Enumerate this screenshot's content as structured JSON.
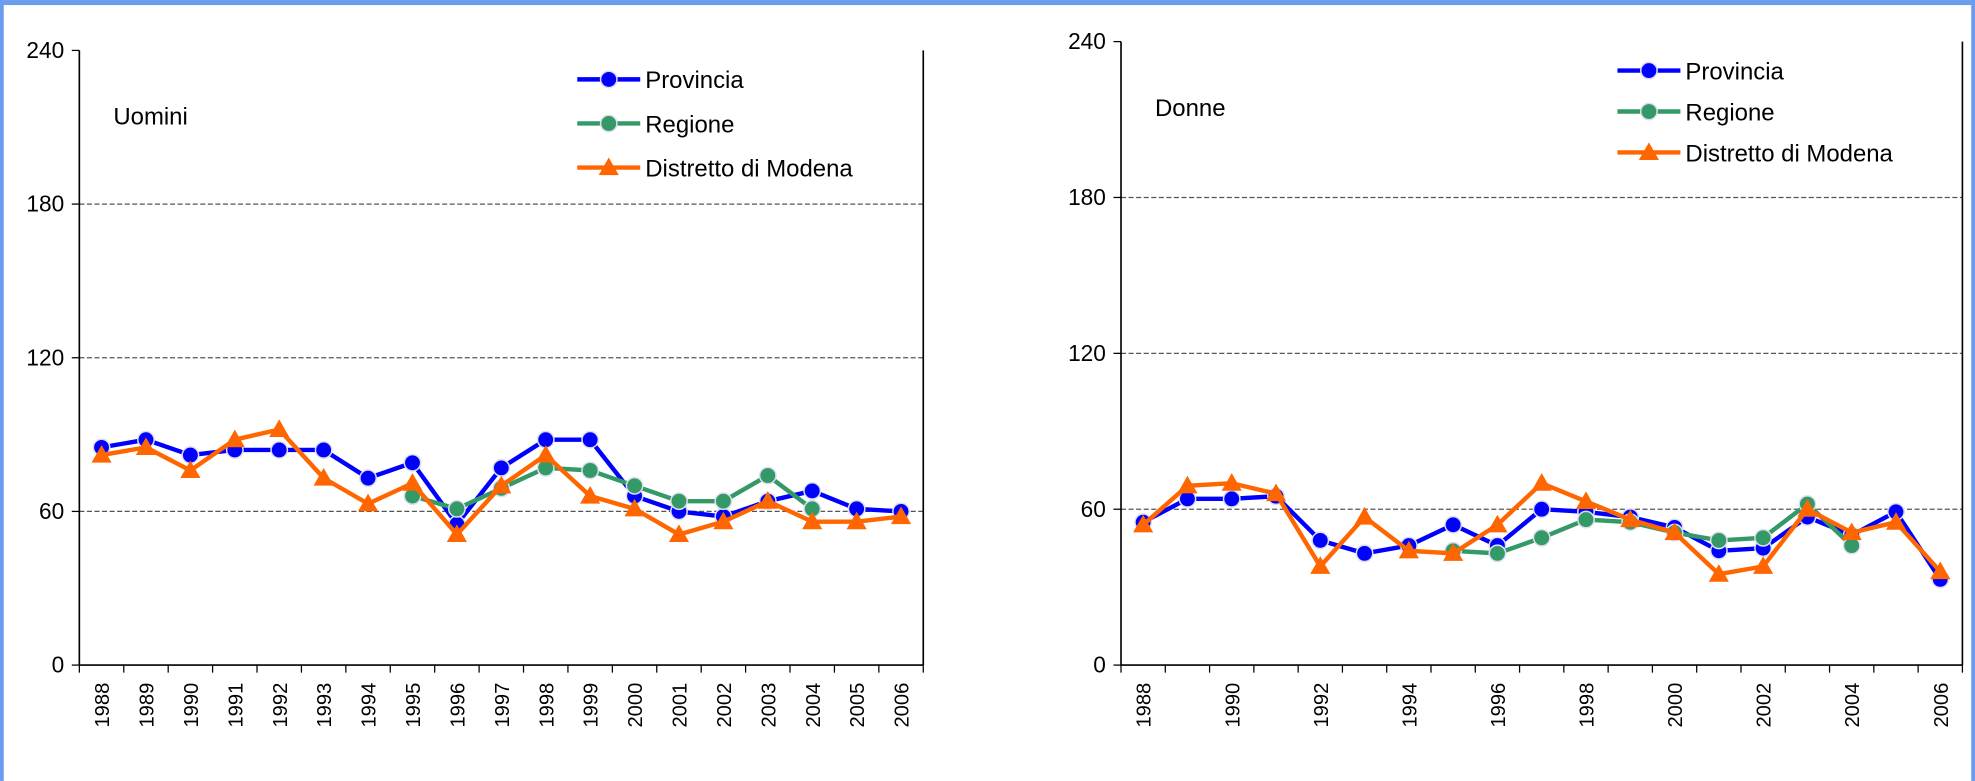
{
  "chart_data": [
    {
      "type": "line",
      "annotation": "Uomini",
      "categories": [
        "1988",
        "1989",
        "1990",
        "1991",
        "1992",
        "1993",
        "1994",
        "1995",
        "1996",
        "1997",
        "1998",
        "1999",
        "2000",
        "2001",
        "2002",
        "2003",
        "2004",
        "2005",
        "2006"
      ],
      "series": [
        {
          "name": "Provincia",
          "color": "#0000ff",
          "marker": "circle",
          "values": [
            85,
            88,
            82,
            84,
            84,
            84,
            73,
            79,
            55,
            77,
            88,
            88,
            66,
            60,
            58,
            64,
            68,
            61,
            60
          ]
        },
        {
          "name": "Regione",
          "color": "#339966",
          "marker": "circle",
          "values": [
            null,
            null,
            null,
            null,
            null,
            null,
            null,
            66,
            61,
            69,
            77,
            76,
            70,
            64,
            64,
            74,
            61,
            null,
            null
          ]
        },
        {
          "name": "Distretto di Modena",
          "color": "#ff6600",
          "marker": "triangle",
          "values": [
            82,
            85,
            76,
            88,
            92,
            73,
            63,
            71,
            51,
            70,
            82,
            66,
            61,
            51,
            56,
            64,
            56,
            56,
            58
          ]
        }
      ],
      "ylim": [
        0,
        240
      ],
      "yticks": [
        0,
        60,
        120,
        180,
        240
      ],
      "grid": true,
      "legend": "top-right"
    },
    {
      "type": "line",
      "annotation": "Donne",
      "categories": [
        "1988",
        null,
        "1990",
        null,
        "1992",
        null,
        "1994",
        null,
        "1996",
        null,
        "1998",
        null,
        "2000",
        null,
        "2002",
        null,
        "2004",
        null,
        "2006"
      ],
      "series": [
        {
          "name": "Provincia",
          "color": "#0000ff",
          "marker": "circle",
          "values": [
            55,
            64,
            64,
            65,
            48,
            43,
            46,
            54,
            46,
            60,
            59,
            57,
            53,
            44,
            45,
            57,
            50,
            59,
            33
          ]
        },
        {
          "name": "Regione",
          "color": "#339966",
          "marker": "circle",
          "values": [
            null,
            null,
            null,
            null,
            null,
            null,
            null,
            44,
            43,
            49,
            56,
            55,
            51,
            48,
            49,
            62,
            46,
            null,
            null
          ]
        },
        {
          "name": "Distretto di Modena",
          "color": "#ff6600",
          "marker": "triangle",
          "values": [
            54,
            69,
            70,
            66,
            38,
            57,
            44,
            43,
            54,
            70,
            63,
            56,
            51,
            35,
            38,
            60,
            51,
            55,
            36
          ]
        }
      ],
      "ylim": [
        0,
        240
      ],
      "yticks": [
        0,
        60,
        120,
        180,
        240
      ],
      "grid": true,
      "legend": "top-right"
    }
  ]
}
